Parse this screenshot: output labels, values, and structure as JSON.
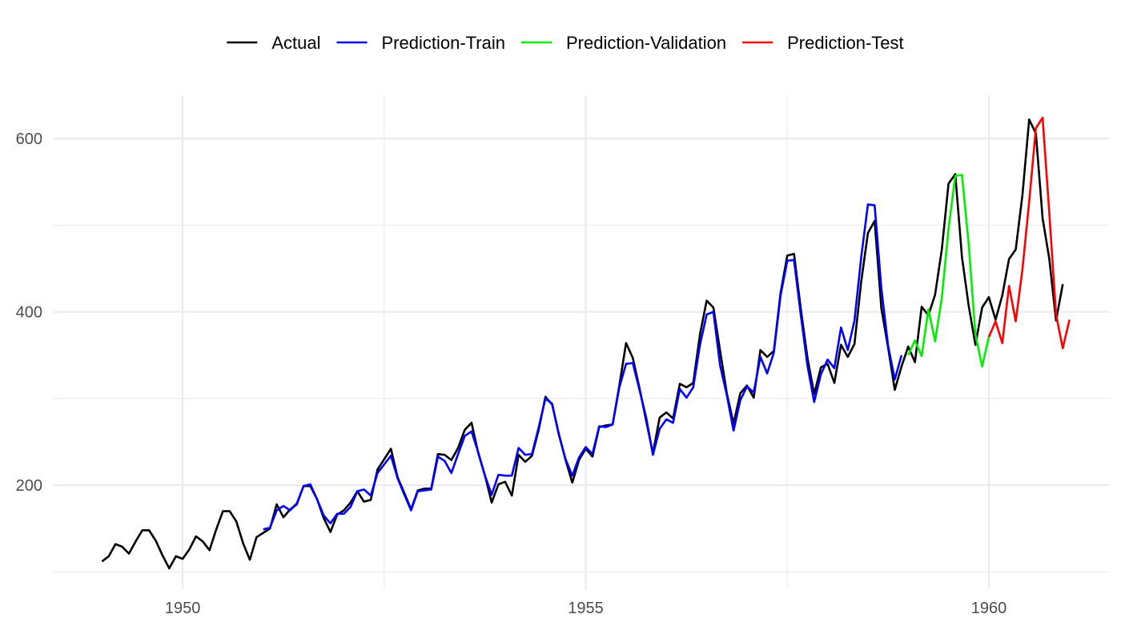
{
  "chart_data": {
    "type": "line",
    "title": "",
    "xlabel": "",
    "ylabel": "",
    "xlim": [
      1948.4,
      1961.5
    ],
    "ylim": [
      80,
      650
    ],
    "x_ticks": [
      1950,
      1955,
      1960
    ],
    "x_tick_labels": [
      "1950",
      "1955",
      "1960"
    ],
    "y_ticks": [
      200,
      400,
      600
    ],
    "y_tick_labels": [
      "200",
      "400",
      "600"
    ],
    "grid": true,
    "legend_position": "top",
    "series": [
      {
        "name": "Actual",
        "color": "#000000",
        "x_start": 1949.0,
        "x_step": 0.0833333,
        "values": [
          112,
          118,
          132,
          129,
          121,
          135,
          148,
          148,
          136,
          119,
          104,
          118,
          115,
          126,
          141,
          135,
          125,
          149,
          170,
          170,
          158,
          133,
          114,
          140,
          145,
          150,
          178,
          163,
          172,
          178,
          199,
          199,
          184,
          162,
          146,
          166,
          171,
          180,
          193,
          181,
          183,
          218,
          230,
          242,
          209,
          191,
          172,
          194,
          196,
          196,
          236,
          235,
          229,
          243,
          264,
          272,
          237,
          211,
          180,
          201,
          204,
          188,
          235,
          227,
          234,
          264,
          302,
          293,
          259,
          229,
          203,
          229,
          242,
          233,
          267,
          269,
          270,
          315,
          364,
          347,
          312,
          274,
          237,
          278,
          284,
          277,
          317,
          313,
          318,
          374,
          413,
          405,
          355,
          306,
          271,
          306,
          315,
          301,
          356,
          348,
          355,
          422,
          465,
          467,
          404,
          347,
          305,
          336,
          340,
          318,
          362,
          348,
          363,
          435,
          491,
          505,
          404,
          359,
          310,
          337,
          360,
          342,
          406,
          396,
          420,
          472,
          548,
          559,
          463,
          407,
          362,
          405,
          417,
          391,
          419,
          461,
          472,
          535,
          622,
          606,
          508,
          461,
          390,
          432
        ]
      },
      {
        "name": "Prediction-Train",
        "color": "#0000ff",
        "x_start": 1951.0,
        "x_step": 0.0833333,
        "values": [
          149,
          151,
          171,
          176,
          171,
          179,
          199,
          201,
          184,
          165,
          156,
          167,
          167,
          175,
          193,
          195,
          188,
          214,
          224,
          234,
          208,
          189,
          171,
          193,
          194,
          195,
          233,
          228,
          214,
          236,
          257,
          262,
          238,
          211,
          189,
          212,
          211,
          211,
          243,
          235,
          236,
          267,
          300,
          294,
          258,
          230,
          211,
          232,
          244,
          236,
          268,
          267,
          270,
          313,
          340,
          341,
          310,
          278,
          235,
          265,
          276,
          272,
          311,
          301,
          313,
          362,
          397,
          400,
          338,
          304,
          263,
          298,
          314,
          307,
          348,
          329,
          353,
          419,
          459,
          460,
          397,
          338,
          296,
          328,
          345,
          335,
          382,
          356,
          390,
          463,
          524,
          523,
          427,
          361,
          322,
          350
        ]
      },
      {
        "name": "Prediction-Validation",
        "color": "#00ee00",
        "x_start": 1959.0,
        "x_step": 0.0833333,
        "values": [
          350,
          367,
          349,
          403,
          366,
          416,
          496,
          557,
          558,
          478,
          374,
          337,
          371
        ]
      },
      {
        "name": "Prediction-Test",
        "color": "#ff0000",
        "x_start": 1960.0,
        "x_step": 0.0833333,
        "values": [
          371,
          389,
          364,
          430,
          389,
          449,
          527,
          612,
          624,
          514,
          397,
          358,
          391
        ]
      }
    ]
  }
}
